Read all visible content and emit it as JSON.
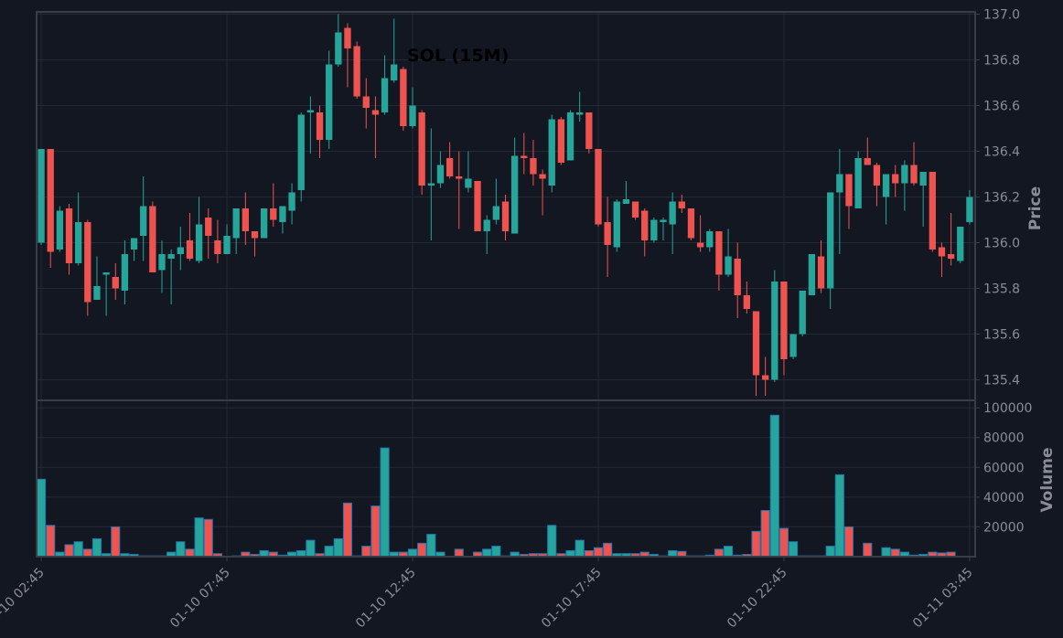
{
  "chart_data": {
    "type": "candlestick",
    "title": "SOL (15M)",
    "interval": "15m",
    "price_panel": {
      "ylabel": "Price",
      "ylim": [
        135.31,
        137.01
      ],
      "yticks": [
        "135.4",
        "135.6",
        "135.8",
        "136.0",
        "136.2",
        "136.4",
        "136.6",
        "136.8",
        "137.0"
      ],
      "grid": true
    },
    "volume_panel": {
      "ylabel": "Volume",
      "ylim": [
        0,
        105000
      ],
      "yticks": [
        "20000",
        "40000",
        "60000",
        "80000",
        "100000"
      ],
      "grid": true
    },
    "xticks": [
      {
        "index": 0,
        "label": "01-10 02:45"
      },
      {
        "index": 20,
        "label": "01-10 07:45"
      },
      {
        "index": 40,
        "label": "01-10 12:45"
      },
      {
        "index": 60,
        "label": "01-10 17:45"
      },
      {
        "index": 80,
        "label": "01-10 22:45"
      },
      {
        "index": 100,
        "label": "01-11 03:45"
      }
    ],
    "ohlc_columns": [
      "open",
      "high",
      "low",
      "close"
    ],
    "ohlc": [
      [
        136.0,
        136.41,
        135.99,
        136.41
      ],
      [
        136.41,
        136.41,
        135.89,
        135.96
      ],
      [
        135.97,
        136.16,
        135.96,
        136.14
      ],
      [
        136.15,
        136.17,
        135.86,
        135.91
      ],
      [
        135.91,
        136.22,
        135.9,
        136.09
      ],
      [
        136.09,
        136.1,
        135.68,
        135.74
      ],
      [
        135.75,
        135.94,
        135.75,
        135.81
      ],
      [
        135.86,
        135.86,
        135.68,
        135.87
      ],
      [
        135.85,
        135.91,
        135.75,
        135.8
      ],
      [
        135.79,
        136.01,
        135.73,
        135.95
      ],
      [
        135.97,
        136.02,
        135.92,
        136.02
      ],
      [
        136.03,
        136.29,
        135.92,
        136.16
      ],
      [
        136.16,
        136.18,
        135.87,
        135.87
      ],
      [
        135.88,
        136.01,
        135.78,
        135.95
      ],
      [
        135.93,
        135.97,
        135.73,
        135.95
      ],
      [
        135.95,
        136.07,
        135.88,
        135.98
      ],
      [
        136.01,
        136.13,
        135.92,
        135.93
      ],
      [
        135.92,
        136.2,
        135.91,
        136.08
      ],
      [
        136.11,
        136.15,
        135.93,
        136.03
      ],
      [
        136.01,
        136.1,
        135.91,
        135.95
      ],
      [
        135.95,
        136.08,
        135.95,
        136.03
      ],
      [
        136.02,
        136.15,
        135.95,
        136.15
      ],
      [
        136.15,
        136.22,
        135.99,
        136.05
      ],
      [
        136.05,
        136.05,
        135.94,
        136.02
      ],
      [
        136.02,
        136.15,
        136.02,
        136.15
      ],
      [
        136.15,
        136.26,
        136.07,
        136.1
      ],
      [
        136.09,
        136.16,
        136.04,
        136.16
      ],
      [
        136.14,
        136.26,
        136.08,
        136.22
      ],
      [
        136.23,
        136.57,
        136.18,
        136.56
      ],
      [
        136.57,
        136.64,
        136.39,
        136.58
      ],
      [
        136.57,
        136.6,
        136.37,
        136.45
      ],
      [
        136.45,
        136.84,
        136.41,
        136.78
      ],
      [
        136.78,
        137.0,
        136.77,
        136.92
      ],
      [
        136.94,
        136.96,
        136.68,
        136.85
      ],
      [
        136.86,
        136.88,
        136.63,
        136.64
      ],
      [
        136.64,
        136.72,
        136.5,
        136.59
      ],
      [
        136.58,
        136.64,
        136.37,
        136.56
      ],
      [
        136.57,
        136.82,
        136.56,
        136.72
      ],
      [
        136.71,
        136.98,
        136.7,
        136.78
      ],
      [
        136.76,
        136.77,
        136.49,
        136.51
      ],
      [
        136.51,
        136.68,
        136.5,
        136.6
      ],
      [
        136.57,
        136.58,
        136.21,
        136.25
      ],
      [
        136.25,
        136.5,
        136.01,
        136.26
      ],
      [
        136.26,
        136.4,
        136.24,
        136.34
      ],
      [
        136.37,
        136.44,
        136.28,
        136.29
      ],
      [
        136.29,
        136.4,
        136.06,
        136.28
      ],
      [
        136.24,
        136.4,
        136.22,
        136.28
      ],
      [
        136.27,
        136.27,
        136.05,
        136.05
      ],
      [
        136.05,
        136.12,
        135.95,
        136.1
      ],
      [
        136.1,
        136.28,
        136.08,
        136.16
      ],
      [
        136.18,
        136.21,
        136.01,
        136.05
      ],
      [
        136.04,
        136.46,
        136.04,
        136.38
      ],
      [
        136.38,
        136.48,
        136.3,
        136.37
      ],
      [
        136.37,
        136.45,
        136.25,
        136.3
      ],
      [
        136.3,
        136.32,
        136.12,
        136.28
      ],
      [
        136.25,
        136.56,
        136.22,
        136.54
      ],
      [
        136.54,
        136.55,
        136.34,
        136.35
      ],
      [
        136.36,
        136.58,
        136.36,
        136.57
      ],
      [
        136.56,
        136.66,
        136.53,
        136.57
      ],
      [
        136.57,
        136.57,
        136.39,
        136.41
      ],
      [
        136.41,
        136.41,
        136.07,
        136.08
      ],
      [
        136.09,
        136.2,
        135.85,
        135.99
      ],
      [
        135.98,
        136.19,
        135.96,
        136.18
      ],
      [
        136.17,
        136.27,
        136.17,
        136.19
      ],
      [
        136.18,
        136.18,
        136.1,
        136.11
      ],
      [
        136.14,
        136.15,
        135.94,
        136.01
      ],
      [
        136.01,
        136.11,
        136.0,
        136.1
      ],
      [
        136.09,
        136.11,
        136.01,
        136.1
      ],
      [
        136.08,
        136.22,
        135.95,
        136.18
      ],
      [
        136.18,
        136.21,
        136.13,
        136.15
      ],
      [
        136.15,
        136.15,
        136.01,
        136.02
      ],
      [
        136.0,
        136.12,
        135.96,
        135.98
      ],
      [
        135.98,
        136.06,
        135.96,
        136.05
      ],
      [
        136.05,
        136.05,
        135.79,
        135.86
      ],
      [
        135.86,
        136.06,
        135.85,
        135.94
      ],
      [
        135.93,
        136.0,
        135.67,
        135.77
      ],
      [
        135.77,
        135.83,
        135.69,
        135.71
      ],
      [
        135.7,
        135.7,
        135.33,
        135.42
      ],
      [
        135.42,
        135.5,
        135.33,
        135.4
      ],
      [
        135.4,
        135.88,
        135.39,
        135.83
      ],
      [
        135.83,
        135.83,
        135.42,
        135.49
      ],
      [
        135.5,
        135.6,
        135.49,
        135.6
      ],
      [
        135.6,
        135.79,
        135.59,
        135.79
      ],
      [
        135.77,
        135.95,
        135.77,
        135.95
      ],
      [
        135.94,
        136.01,
        135.78,
        135.8
      ],
      [
        135.8,
        136.22,
        135.71,
        136.22
      ],
      [
        136.22,
        136.41,
        135.95,
        136.3
      ],
      [
        136.3,
        136.3,
        136.06,
        136.16
      ],
      [
        136.15,
        136.4,
        136.15,
        136.37
      ],
      [
        136.37,
        136.46,
        136.34,
        136.34
      ],
      [
        136.34,
        136.35,
        136.16,
        136.25
      ],
      [
        136.2,
        136.3,
        136.08,
        136.3
      ],
      [
        136.3,
        136.34,
        136.2,
        136.26
      ],
      [
        136.26,
        136.36,
        136.14,
        136.34
      ],
      [
        136.34,
        136.44,
        136.25,
        136.26
      ],
      [
        136.25,
        136.31,
        136.07,
        136.31
      ],
      [
        136.31,
        136.31,
        135.96,
        135.97
      ],
      [
        135.98,
        136.0,
        135.85,
        135.94
      ],
      [
        135.95,
        136.13,
        135.9,
        135.93
      ],
      [
        135.92,
        136.07,
        135.91,
        136.07
      ],
      [
        136.09,
        136.23,
        136.08,
        136.2
      ]
    ],
    "volume": [
      52000,
      21000,
      3000,
      8000,
      10000,
      5000,
      12000,
      2000,
      20000,
      2000,
      1500,
      500,
      500,
      500,
      3000,
      10000,
      5000,
      26000,
      25000,
      2000,
      0,
      500,
      3000,
      1500,
      4000,
      3000,
      1000,
      3000,
      4000,
      11000,
      2000,
      7000,
      12000,
      36000,
      500,
      7000,
      34000,
      73000,
      3000,
      3000,
      5000,
      9000,
      15000,
      3000,
      0,
      5000,
      0,
      3000,
      5000,
      7000,
      500,
      3000,
      1500,
      2000,
      2000,
      21000,
      2000,
      4000,
      11000,
      4000,
      6000,
      9000,
      2000,
      2000,
      2000,
      3000,
      1500,
      500,
      4000,
      3500,
      500,
      500,
      1000,
      5000,
      7000,
      1000,
      1500,
      17000,
      31000,
      95000,
      19000,
      10000,
      500,
      500,
      500,
      7000,
      55000,
      20000,
      0,
      9000,
      0,
      6000,
      5000,
      3000,
      1000,
      1500,
      3000,
      2500,
      3000,
      0,
      0
    ],
    "colors": {
      "up": "#26a69a",
      "down": "#ef5350",
      "volume_edge": "#1f77b4",
      "background": "#131722",
      "grid": "#252935",
      "axis": "#3a3d47",
      "text": "#8a8d96"
    }
  }
}
